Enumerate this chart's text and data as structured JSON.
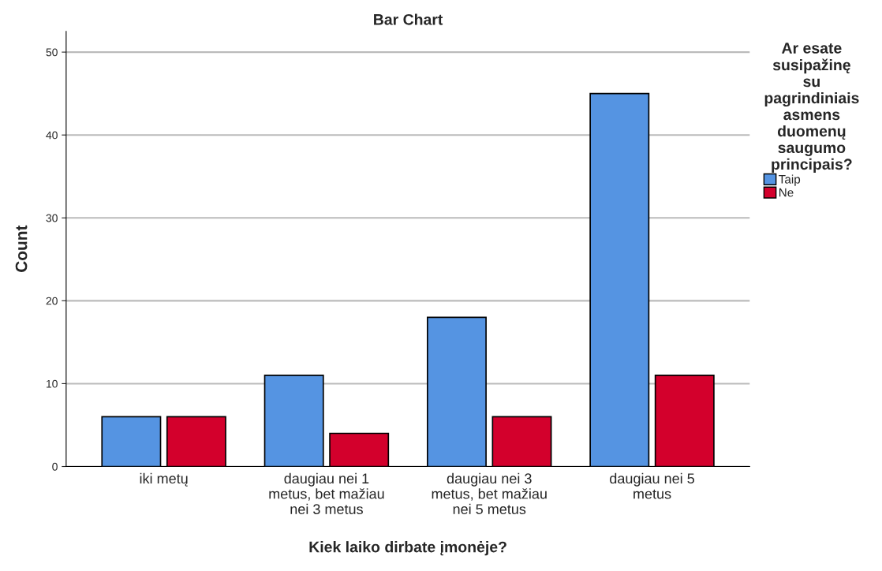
{
  "chart_data": {
    "type": "bar",
    "title": "Bar Chart",
    "xlabel": "Kiek laiko dirbate įmonėje?",
    "ylabel": "Count",
    "legend_title": "Ar esate\nsusipažinę\nsu\npagrindiniais\nasmens\nduomenų\nsaugumo\nprincipais?",
    "categories": [
      "iki metų",
      "daugiau nei 1\nmetus, bet mažiau\nnei 3 metus",
      "daugiau nei 3\nmetus, bet mažiau\nnei 5 metus",
      "daugiau nei 5\nmetus"
    ],
    "series": [
      {
        "name": "Taip",
        "color": "#5594e2",
        "values": [
          6,
          11,
          18,
          45
        ]
      },
      {
        "name": "Ne",
        "color": "#d3002c",
        "values": [
          6,
          4,
          6,
          11
        ]
      }
    ],
    "ylim": [
      0,
      52.5
    ],
    "yticks": [
      0,
      10,
      20,
      30,
      40,
      50
    ],
    "grid": "y",
    "legend": "right"
  }
}
